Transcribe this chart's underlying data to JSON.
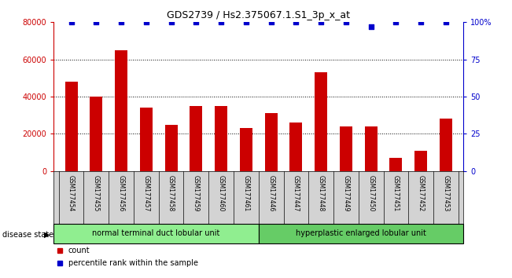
{
  "title": "GDS2739 / Hs2.375067.1.S1_3p_x_at",
  "samples": [
    "GSM177454",
    "GSM177455",
    "GSM177456",
    "GSM177457",
    "GSM177458",
    "GSM177459",
    "GSM177460",
    "GSM177461",
    "GSM177446",
    "GSM177447",
    "GSM177448",
    "GSM177449",
    "GSM177450",
    "GSM177451",
    "GSM177452",
    "GSM177453"
  ],
  "counts": [
    48000,
    40000,
    65000,
    34000,
    25000,
    35000,
    35000,
    23000,
    31000,
    26000,
    53000,
    24000,
    24000,
    7000,
    11000,
    28000
  ],
  "percentile": [
    100,
    100,
    100,
    100,
    100,
    100,
    100,
    100,
    100,
    100,
    100,
    100,
    97,
    100,
    100,
    100
  ],
  "bar_color": "#cc0000",
  "percentile_color": "#0000cc",
  "ylim_left": [
    0,
    80000
  ],
  "ylim_right": [
    0,
    100
  ],
  "yticks_left": [
    0,
    20000,
    40000,
    60000,
    80000
  ],
  "yticks_right": [
    0,
    25,
    50,
    75,
    100
  ],
  "ytick_labels_right": [
    "0",
    "25",
    "50",
    "75",
    "100%"
  ],
  "groups": [
    {
      "label": "normal terminal duct lobular unit",
      "start": 0,
      "end": 8,
      "color": "#90ee90"
    },
    {
      "label": "hyperplastic enlarged lobular unit",
      "start": 8,
      "end": 16,
      "color": "#66cc66"
    }
  ],
  "disease_state_label": "disease state",
  "legend_count_label": "count",
  "legend_percentile_label": "percentile rank within the sample",
  "background_color": "#ffffff",
  "tick_area_color": "#d3d3d3",
  "bar_width": 0.5
}
